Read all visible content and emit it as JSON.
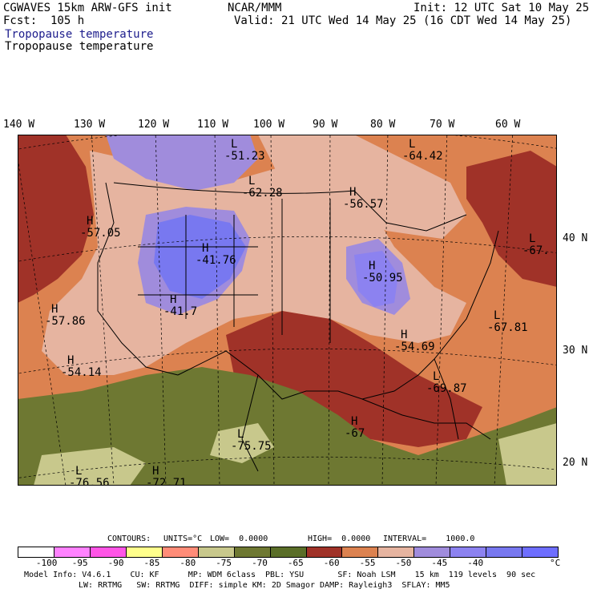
{
  "header": {
    "left_line1": "CGWAVES 15km ARW-GFS init",
    "left_line2": "Fcst:  105 h",
    "center": "NCAR/MMM",
    "init": "Init: 12 UTC Sat 10 May 25",
    "valid": "Valid: 21 UTC Wed 14 May 25 (16 CDT Wed 14 May 25)",
    "field_title_colored": "Tropopause temperature",
    "field_title_black": "Tropopause temperature"
  },
  "longitude_labels": [
    "140 W",
    "130 W",
    "120 W",
    "110 W",
    "100 W",
    "90 W",
    "80 W",
    "70 W",
    "60 W"
  ],
  "latitude_labels": [
    "40 N",
    "30 N",
    "20 N"
  ],
  "map_labels": [
    {
      "type": "L",
      "value": "-51.23"
    },
    {
      "type": "L",
      "value": "-64.42"
    },
    {
      "type": "L",
      "value": "-62.28"
    },
    {
      "type": "H",
      "value": "-56.57"
    },
    {
      "type": "H",
      "value": "-57.05"
    },
    {
      "type": "H",
      "value": "-41.76"
    },
    {
      "type": "L",
      "value": "-67."
    },
    {
      "type": "H",
      "value": "-50.95"
    },
    {
      "type": "H",
      "value": "-41.7"
    },
    {
      "type": "H",
      "value": "-57.86"
    },
    {
      "type": "L",
      "value": "-67.81"
    },
    {
      "type": "H",
      "value": "-54.69"
    },
    {
      "type": "H",
      "value": "-54.14"
    },
    {
      "type": "L",
      "value": "-69.87"
    },
    {
      "type": "H",
      "value": "-67"
    },
    {
      "type": "L",
      "value": "-75.75"
    },
    {
      "type": "L",
      "value": "-76.56"
    },
    {
      "type": "H",
      "value": "-72.71"
    }
  ],
  "contours": {
    "label": "CONTOURS:",
    "units": "UNITS=°C",
    "low": "LOW=  0.0000",
    "high": "HIGH=  0.0000",
    "interval": "INTERVAL=    1000.0"
  },
  "colorbar": {
    "colors": [
      "#ffffff",
      "#ff82ff",
      "#ff55e6",
      "#ffff8c",
      "#ff8c78",
      "#c8c88c",
      "#6e7832",
      "#5a6e28",
      "#a03228",
      "#dc8250",
      "#e6b4a0",
      "#a08cdc",
      "#8c82f0",
      "#7878f0",
      "#6e6eff"
    ],
    "ticks": [
      "-100",
      "-95",
      "-90",
      "-85",
      "-80",
      "-75",
      "-70",
      "-65",
      "-60",
      "-55",
      "-50",
      "-45",
      "-40"
    ],
    "unit": "°C"
  },
  "model_info": {
    "line1": "Model Info: V4.6.1    CU: KF      MP: WDM 6class  PBL: YSU       SF: Noah LSM    15 km  119 levels  90 sec",
    "line2": "LW: RRTMG   SW: RRTMG  DIFF: simple KM: 2D Smagor DAMP: Rayleigh3  SFLAY: MM5"
  }
}
